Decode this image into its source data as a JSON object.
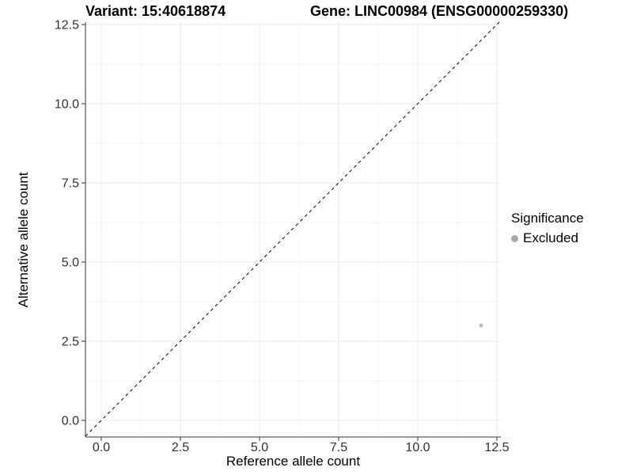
{
  "titles": {
    "variant": "Variant: 15:40618874",
    "gene": "Gene: LINC00984 (ENSG00000259330)"
  },
  "chart_data": {
    "type": "scatter",
    "title": "Variant: 15:40618874   Gene: LINC00984 (ENSG00000259330)",
    "xlabel": "Reference allele count",
    "ylabel": "Alternative allele count",
    "xlim": [
      -0.5,
      12.625
    ],
    "ylim": [
      -0.525,
      12.575
    ],
    "x_ticks": [
      0.0,
      2.5,
      5.0,
      7.5,
      10.0,
      12.5
    ],
    "y_ticks": [
      0.0,
      2.5,
      5.0,
      7.5,
      10.0,
      12.5
    ],
    "x_tick_labels": [
      "0.0",
      "2.5",
      "5.0",
      "7.5",
      "10.0",
      "12.5"
    ],
    "y_tick_labels": [
      "0.0",
      "2.5",
      "5.0",
      "7.5",
      "10.0",
      "12.5"
    ],
    "grid": true,
    "identity_line": {
      "style": "dashed",
      "color": "#000000"
    },
    "series": [
      {
        "name": "Excluded",
        "color": "#bdbdbd",
        "points": [
          {
            "x": 12,
            "y": 3
          }
        ]
      }
    ],
    "legend": {
      "title": "Significance",
      "position": "right",
      "items": [
        {
          "label": "Excluded",
          "color": "#a8a8a8"
        }
      ]
    }
  },
  "colors": {
    "grid_major": "#ebebeb",
    "grid_minor": "#f6f6f6",
    "axis_line": "#333333",
    "tick_text": "#303030",
    "panel_background": "#ffffff"
  }
}
